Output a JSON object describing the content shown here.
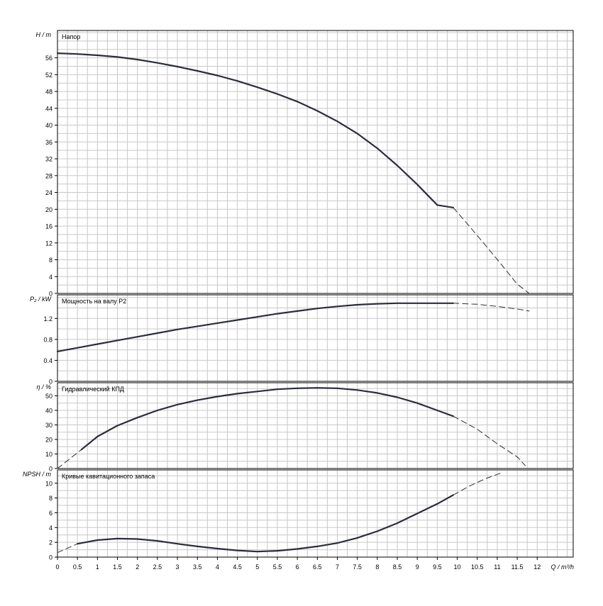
{
  "chart_data": {
    "type": "line",
    "x_axis": {
      "label": "Q / m³/h",
      "min": 0,
      "max": 12.9,
      "tick_labels": [
        "0",
        "0.5",
        "1",
        "1.5",
        "2",
        "2.5",
        "3",
        "3.5",
        "4",
        "4.5",
        "5",
        "5.5",
        "6",
        "6.5",
        "7",
        "7.5",
        "8",
        "8.5",
        "9",
        "9.5",
        "10",
        "10.5",
        "11",
        "11.5",
        "12"
      ]
    },
    "panels": [
      {
        "id": "head",
        "title": "Напор",
        "ylabel": "H / m",
        "ylim": [
          0,
          62.5
        ],
        "y_ticks": [
          "0",
          "4",
          "8",
          "12",
          "16",
          "20",
          "24",
          "28",
          "32",
          "36",
          "40",
          "44",
          "48",
          "52",
          "56"
        ],
        "y_tick_values": [
          0,
          4,
          8,
          12,
          16,
          20,
          24,
          28,
          32,
          36,
          40,
          44,
          48,
          52,
          56
        ],
        "solid": {
          "x": [
            0,
            0.5,
            1,
            1.5,
            2,
            2.5,
            3,
            3.5,
            4,
            4.5,
            5,
            5.5,
            6,
            6.5,
            7,
            7.5,
            8,
            8.5,
            9,
            9.5,
            9.9
          ],
          "y": [
            57.1,
            56.9,
            56.6,
            56.2,
            55.6,
            54.8,
            53.9,
            52.9,
            51.8,
            50.5,
            49.0,
            47.4,
            45.6,
            43.4,
            40.9,
            38.0,
            34.5,
            30.4,
            25.9,
            21.0,
            20.4
          ]
        },
        "dashed": {
          "x": [
            9.9,
            10.3,
            10.7,
            11.1,
            11.5,
            11.8
          ],
          "y": [
            20.4,
            16.0,
            11.5,
            6.9,
            2.2,
            0
          ]
        }
      },
      {
        "id": "power",
        "title": "Мощность на валу P2",
        "ylabel": "P₂ / kW",
        "ylim": [
          0,
          1.65
        ],
        "y_ticks": [
          "0",
          "0.4",
          "0.8",
          "1.2"
        ],
        "y_tick_values": [
          0,
          0.4,
          0.8,
          1.2
        ],
        "solid": {
          "x": [
            0,
            0.5,
            1,
            1.5,
            2,
            2.5,
            3,
            3.5,
            4,
            4.5,
            5,
            5.5,
            6,
            6.5,
            7,
            7.5,
            8,
            8.5,
            9,
            9.5,
            9.9
          ],
          "y": [
            0.57,
            0.64,
            0.71,
            0.78,
            0.85,
            0.92,
            0.99,
            1.05,
            1.11,
            1.17,
            1.23,
            1.29,
            1.34,
            1.39,
            1.43,
            1.46,
            1.48,
            1.49,
            1.49,
            1.49,
            1.49
          ]
        },
        "dashed": {
          "x": [
            9.9,
            10.5,
            11,
            11.5,
            11.8
          ],
          "y": [
            1.49,
            1.47,
            1.43,
            1.38,
            1.34
          ]
        }
      },
      {
        "id": "efficiency",
        "title": "Гидравлический КПД",
        "ylabel": "η / %",
        "ylim": [
          0,
          59
        ],
        "y_ticks": [
          "0",
          "10",
          "20",
          "30",
          "40",
          "50"
        ],
        "y_tick_values": [
          0,
          10,
          20,
          30,
          40,
          50
        ],
        "solid": {
          "x": [
            0.6,
            1,
            1.5,
            2,
            2.5,
            3,
            3.5,
            4,
            4.5,
            5,
            5.5,
            6,
            6.5,
            7,
            7.5,
            8,
            8.5,
            9,
            9.5,
            9.9
          ],
          "y": [
            13,
            22,
            29.5,
            35,
            40,
            44,
            47,
            49.5,
            51.5,
            53,
            54.5,
            55.2,
            55.5,
            55.2,
            54,
            52,
            49,
            45,
            40,
            36
          ]
        },
        "dashed": {
          "x": [
            0,
            0.6
          ],
          "y": [
            0,
            13
          ]
        },
        "dashed2": {
          "x": [
            9.9,
            10.5,
            11,
            11.5,
            11.7
          ],
          "y": [
            36,
            27,
            17,
            8,
            2
          ]
        }
      },
      {
        "id": "npsh",
        "title": "Кривые кавитационного запаса",
        "ylabel": "NPSH / m",
        "ylim": [
          0,
          11.8
        ],
        "y_ticks": [
          "0",
          "2",
          "4",
          "6",
          "8",
          "10"
        ],
        "y_tick_values": [
          0,
          2,
          4,
          6,
          8,
          10
        ],
        "solid": {
          "x": [
            0.5,
            1,
            1.5,
            2,
            2.5,
            3,
            3.5,
            4,
            4.5,
            5,
            5.5,
            6,
            6.5,
            7,
            7.5,
            8,
            8.5,
            9,
            9.5,
            9.9
          ],
          "y": [
            1.8,
            2.3,
            2.5,
            2.45,
            2.2,
            1.8,
            1.45,
            1.15,
            0.9,
            0.75,
            0.85,
            1.1,
            1.45,
            1.9,
            2.6,
            3.5,
            4.6,
            5.9,
            7.2,
            8.4
          ]
        },
        "dashed": {
          "x": [
            0,
            0.5
          ],
          "y": [
            0.6,
            1.8
          ]
        },
        "dashed2": {
          "x": [
            9.9,
            10.3,
            10.7,
            11.1
          ],
          "y": [
            8.4,
            9.6,
            10.6,
            11.4
          ]
        }
      }
    ]
  }
}
